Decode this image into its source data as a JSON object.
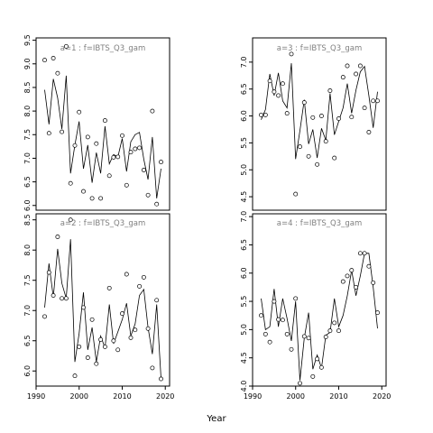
{
  "xlabel": "Year",
  "chart_data": [
    {
      "type": "scatter",
      "title": "a=1  :  f=IBTS_Q3_gam",
      "xlim": [
        1990,
        2021
      ],
      "ylim": [
        5.9,
        9.55
      ],
      "xticks": [],
      "yticks": [
        6.0,
        6.5,
        7.0,
        7.5,
        8.0,
        8.5,
        9.0,
        9.5
      ],
      "ytick_labels": [
        "6.0",
        "6.5",
        "7.0",
        "7.5",
        "8.0",
        "8.5",
        "9.0",
        "9.5"
      ],
      "series": [
        {
          "mark": "points",
          "x": [
            1992,
            1993,
            1994,
            1995,
            1996,
            1997,
            1998,
            1999,
            2000,
            2001,
            2002,
            2003,
            2004,
            2005,
            2006,
            2007,
            2008,
            2009,
            2010,
            2011,
            2012,
            2013,
            2014,
            2015,
            2016,
            2017,
            2018,
            2019
          ],
          "y": [
            9.08,
            7.53,
            9.12,
            8.8,
            7.56,
            9.37,
            6.47,
            7.27,
            7.98,
            6.3,
            7.45,
            6.15,
            7.31,
            6.15,
            7.8,
            6.63,
            7.02,
            7.03,
            7.48,
            6.43,
            7.13,
            7.2,
            7.22,
            6.75,
            6.22,
            8.0,
            6.03,
            6.92
          ]
        },
        {
          "mark": "line",
          "x": [
            1992,
            1993,
            1994,
            1995,
            1996,
            1997,
            1998,
            1999,
            2000,
            2001,
            2002,
            2003,
            2004,
            2005,
            2006,
            2007,
            2008,
            2009,
            2010,
            2011,
            2012,
            2013,
            2014,
            2015,
            2016,
            2017,
            2018,
            2019
          ],
          "y": [
            8.45,
            7.72,
            8.68,
            8.28,
            7.62,
            8.75,
            6.68,
            7.28,
            7.78,
            6.78,
            7.28,
            6.48,
            7.12,
            6.68,
            7.68,
            6.88,
            7.08,
            7.03,
            7.42,
            6.72,
            7.35,
            7.5,
            7.55,
            6.98,
            6.55,
            7.45,
            6.15,
            6.78
          ]
        }
      ]
    },
    {
      "type": "scatter",
      "title": "a=3  :  f=IBTS_Q3_gam",
      "xlim": [
        1990,
        2021
      ],
      "ylim": [
        4.25,
        7.45
      ],
      "xticks": [],
      "yticks": [
        4.5,
        5.0,
        5.5,
        6.0,
        6.5,
        7.0
      ],
      "ytick_labels": [
        "4.5",
        "5.0",
        "5.5",
        "6.0",
        "6.5",
        "7.0"
      ],
      "series": [
        {
          "mark": "points",
          "x": [
            1992,
            1993,
            1994,
            1995,
            1996,
            1997,
            1998,
            1999,
            2000,
            2001,
            2002,
            2003,
            2004,
            2005,
            2006,
            2007,
            2008,
            2009,
            2010,
            2011,
            2012,
            2013,
            2014,
            2015,
            2016,
            2017,
            2018,
            2019
          ],
          "y": [
            6.02,
            6.02,
            6.65,
            6.45,
            6.38,
            6.6,
            6.05,
            7.15,
            4.55,
            5.43,
            6.25,
            5.25,
            5.97,
            5.1,
            6.0,
            5.53,
            6.47,
            5.22,
            5.95,
            6.72,
            6.93,
            5.98,
            6.78,
            6.93,
            6.15,
            5.7,
            6.28,
            6.28
          ]
        },
        {
          "mark": "line",
          "x": [
            1992,
            1993,
            1994,
            1995,
            1996,
            1997,
            1998,
            1999,
            2000,
            2001,
            2002,
            2003,
            2004,
            2005,
            2006,
            2007,
            2008,
            2009,
            2010,
            2011,
            2012,
            2013,
            2014,
            2015,
            2016,
            2017,
            2018,
            2019
          ],
          "y": [
            5.93,
            6.12,
            6.78,
            6.38,
            6.8,
            6.28,
            6.15,
            6.98,
            5.2,
            5.73,
            6.3,
            5.48,
            5.75,
            5.22,
            5.77,
            5.55,
            6.42,
            5.65,
            5.9,
            6.15,
            6.6,
            6.05,
            6.48,
            6.82,
            6.92,
            6.38,
            5.78,
            6.45
          ]
        }
      ]
    },
    {
      "type": "scatter",
      "title": "a=2  :  f=IBTS_Q3_gam",
      "xlim": [
        1990,
        2021
      ],
      "ylim": [
        5.75,
        8.6
      ],
      "xticks": [
        1990,
        2000,
        2010,
        2020
      ],
      "xtick_labels": [
        "1990",
        "2000",
        "2010",
        "2020"
      ],
      "yticks": [
        6.0,
        6.5,
        7.0,
        7.5,
        8.0,
        8.5
      ],
      "ytick_labels": [
        "6.0",
        "6.5",
        "7.0",
        "7.5",
        "8.0",
        "8.5"
      ],
      "series": [
        {
          "mark": "points",
          "x": [
            1992,
            1993,
            1994,
            1995,
            1996,
            1997,
            1998,
            1999,
            2000,
            2001,
            2002,
            2003,
            2004,
            2005,
            2006,
            2007,
            2008,
            2009,
            2010,
            2011,
            2012,
            2013,
            2014,
            2015,
            2016,
            2017,
            2018,
            2019
          ],
          "y": [
            6.9,
            7.63,
            7.25,
            8.22,
            7.2,
            7.2,
            8.5,
            5.92,
            6.4,
            7.05,
            6.22,
            6.85,
            6.12,
            6.52,
            6.4,
            7.37,
            6.5,
            6.35,
            6.95,
            7.6,
            6.55,
            6.68,
            7.4,
            7.55,
            6.7,
            6.05,
            7.17,
            5.87
          ]
        },
        {
          "mark": "line",
          "x": [
            1992,
            1993,
            1994,
            1995,
            1996,
            1997,
            1998,
            1999,
            2000,
            2001,
            2002,
            2003,
            2004,
            2005,
            2006,
            2007,
            2008,
            2009,
            2010,
            2011,
            2012,
            2013,
            2014,
            2015,
            2016,
            2017,
            2018,
            2019
          ],
          "y": [
            7.05,
            7.78,
            7.22,
            8.02,
            7.45,
            7.2,
            8.18,
            6.15,
            6.62,
            7.3,
            6.35,
            6.72,
            6.15,
            6.58,
            6.38,
            7.1,
            6.45,
            6.65,
            6.85,
            7.12,
            6.58,
            6.78,
            7.25,
            7.35,
            6.72,
            6.28,
            7.1,
            5.88
          ]
        }
      ]
    },
    {
      "type": "scatter",
      "title": "a=4  :  f=IBTS_Q3_gam",
      "xlim": [
        1990,
        2021
      ],
      "ylim": [
        4.0,
        7.05
      ],
      "xticks": [
        1990,
        2000,
        2010,
        2020
      ],
      "xtick_labels": [
        "1990",
        "2000",
        "2010",
        "2020"
      ],
      "yticks": [
        4.0,
        4.5,
        5.0,
        5.5,
        6.0,
        6.5,
        7.0
      ],
      "ytick_labels": [
        "4.0",
        "4.5",
        "5.0",
        "5.5",
        "6.0",
        "6.5",
        "7.0"
      ],
      "series": [
        {
          "mark": "points",
          "x": [
            1992,
            1993,
            1994,
            1995,
            1996,
            1997,
            1998,
            1999,
            2000,
            2001,
            2002,
            2003,
            2004,
            2005,
            2006,
            2007,
            2008,
            2009,
            2010,
            2011,
            2012,
            2013,
            2014,
            2015,
            2016,
            2017,
            2018,
            2019
          ],
          "y": [
            5.25,
            4.92,
            4.78,
            5.5,
            5.18,
            5.17,
            4.92,
            4.65,
            5.55,
            4.05,
            4.88,
            4.85,
            4.17,
            4.48,
            4.33,
            4.87,
            4.98,
            5.12,
            4.98,
            5.85,
            5.95,
            6.05,
            5.75,
            6.35,
            6.35,
            6.12,
            5.83,
            5.3
          ]
        },
        {
          "mark": "line",
          "x": [
            1992,
            1993,
            1994,
            1995,
            1996,
            1997,
            1998,
            1999,
            2000,
            2001,
            2002,
            2003,
            2004,
            2005,
            2006,
            2007,
            2008,
            2009,
            2010,
            2011,
            2012,
            2013,
            2014,
            2015,
            2016,
            2017,
            2018,
            2019
          ],
          "y": [
            5.55,
            5.0,
            5.05,
            5.72,
            5.05,
            5.55,
            5.2,
            4.8,
            5.5,
            4.1,
            4.85,
            5.3,
            4.3,
            4.55,
            4.32,
            4.9,
            4.95,
            5.55,
            5.05,
            5.25,
            5.6,
            6.05,
            5.6,
            5.95,
            6.35,
            6.35,
            5.75,
            5.02
          ]
        }
      ]
    }
  ]
}
